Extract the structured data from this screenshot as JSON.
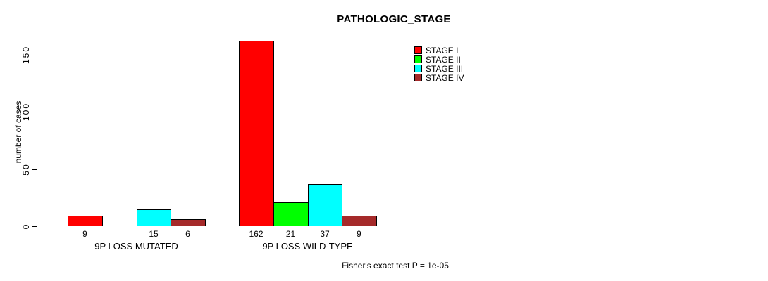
{
  "chart_data": {
    "type": "bar",
    "title": "PATHOLOGIC_STAGE",
    "ylabel": "number of cases",
    "ylim": [
      0,
      150
    ],
    "yticks": [
      0,
      50,
      100,
      150
    ],
    "grid": false,
    "legend_position": "top-right",
    "categories": [
      "9P LOSS MUTATED",
      "9P LOSS WILD-TYPE"
    ],
    "series": [
      {
        "name": "STAGE I",
        "color": "#FF0000",
        "values": [
          9,
          162
        ]
      },
      {
        "name": "STAGE II",
        "color": "#00FF00",
        "values": [
          0,
          21
        ]
      },
      {
        "name": "STAGE III",
        "color": "#00FFFF",
        "values": [
          15,
          37
        ]
      },
      {
        "name": "STAGE IV",
        "color": "#A52A2A",
        "values": [
          6,
          9
        ]
      }
    ],
    "bar_value_labels_shown": [
      "9",
      "15",
      "6",
      "162",
      "21",
      "37",
      "9"
    ],
    "annotation": "Fisher's exact test P = 1e-05"
  }
}
